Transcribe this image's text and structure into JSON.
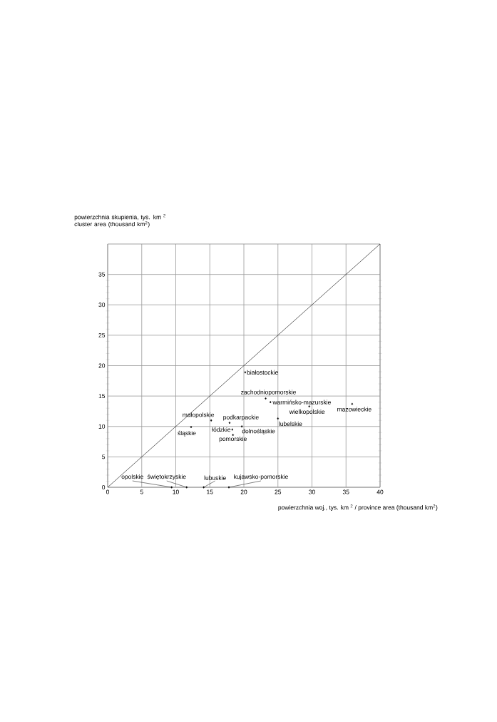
{
  "chart_data": {
    "type": "scatter",
    "xlabel": "powierzchnia woj., tys. km $^{2}$ / province area  (thousand  km$^{2}$)",
    "ylabel": "powierzchnia skupienia, tys. km $^{2}$ cluster area (thousand  km$^{2}$)",
    "xlim": [
      0,
      40
    ],
    "ylim": [
      0,
      40
    ],
    "xticks": [
      0,
      5,
      10,
      15,
      20,
      25,
      30,
      35,
      40
    ],
    "yticks": [
      0,
      5,
      10,
      15,
      20,
      25,
      30,
      35
    ],
    "grid": true,
    "marker": "diamond",
    "series": [
      {
        "color": "#000000",
        "x": [
          20.2,
          23.2,
          23.9,
          29.6,
          35.9,
          25.0,
          15.2,
          17.9,
          19.7,
          12.25,
          18.3,
          18.4,
          9.4,
          11.6,
          14.1,
          17.8
        ],
        "values": [
          18.9,
          14.6,
          14.0,
          13.3,
          13.7,
          11.3,
          11.0,
          10.6,
          10.0,
          9.9,
          9.5,
          8.6,
          0,
          0,
          0,
          0
        ]
      },
      {
        "type": "line",
        "color": "#000000",
        "marker": "none",
        "x": [
          0,
          40
        ],
        "values": [
          0,
          40
        ]
      }
    ],
    "annotations": [
      {
        "text": "białostockie",
        "x": 20.2,
        "y": 18.9
      },
      {
        "text": "zachodniopomorskie",
        "x": 23.2,
        "y": 14.6
      },
      {
        "text": "warmińsko-mazurskie",
        "x": 23.9,
        "y": 14.0
      },
      {
        "text": "wielkopolskie",
        "x": 29.6,
        "y": 13.3
      },
      {
        "text": "mazowieckie",
        "x": 35.9,
        "y": 13.7
      },
      {
        "text": "lubelskie",
        "x": 25.0,
        "y": 11.3
      },
      {
        "text": "małopolskie",
        "x": 15.2,
        "y": 11.0
      },
      {
        "text": "podkarpackie",
        "x": 17.9,
        "y": 10.6
      },
      {
        "text": "dolnośląskie",
        "x": 19.7,
        "y": 10.0
      },
      {
        "text": "śląskie",
        "x": 12.25,
        "y": 9.9
      },
      {
        "text": "łódzkie",
        "x": 18.3,
        "y": 9.5
      },
      {
        "text": "pomorskie",
        "x": 18.4,
        "y": 8.6
      },
      {
        "text": "opolskie",
        "x": 9.4,
        "y": 0
      },
      {
        "text": "świętokrzyskie",
        "x": 11.6,
        "y": 0
      },
      {
        "text": "lubuskie",
        "x": 14.1,
        "y": 0
      },
      {
        "text": "kujawsko-pomorskie",
        "x": 17.8,
        "y": 0
      }
    ]
  }
}
